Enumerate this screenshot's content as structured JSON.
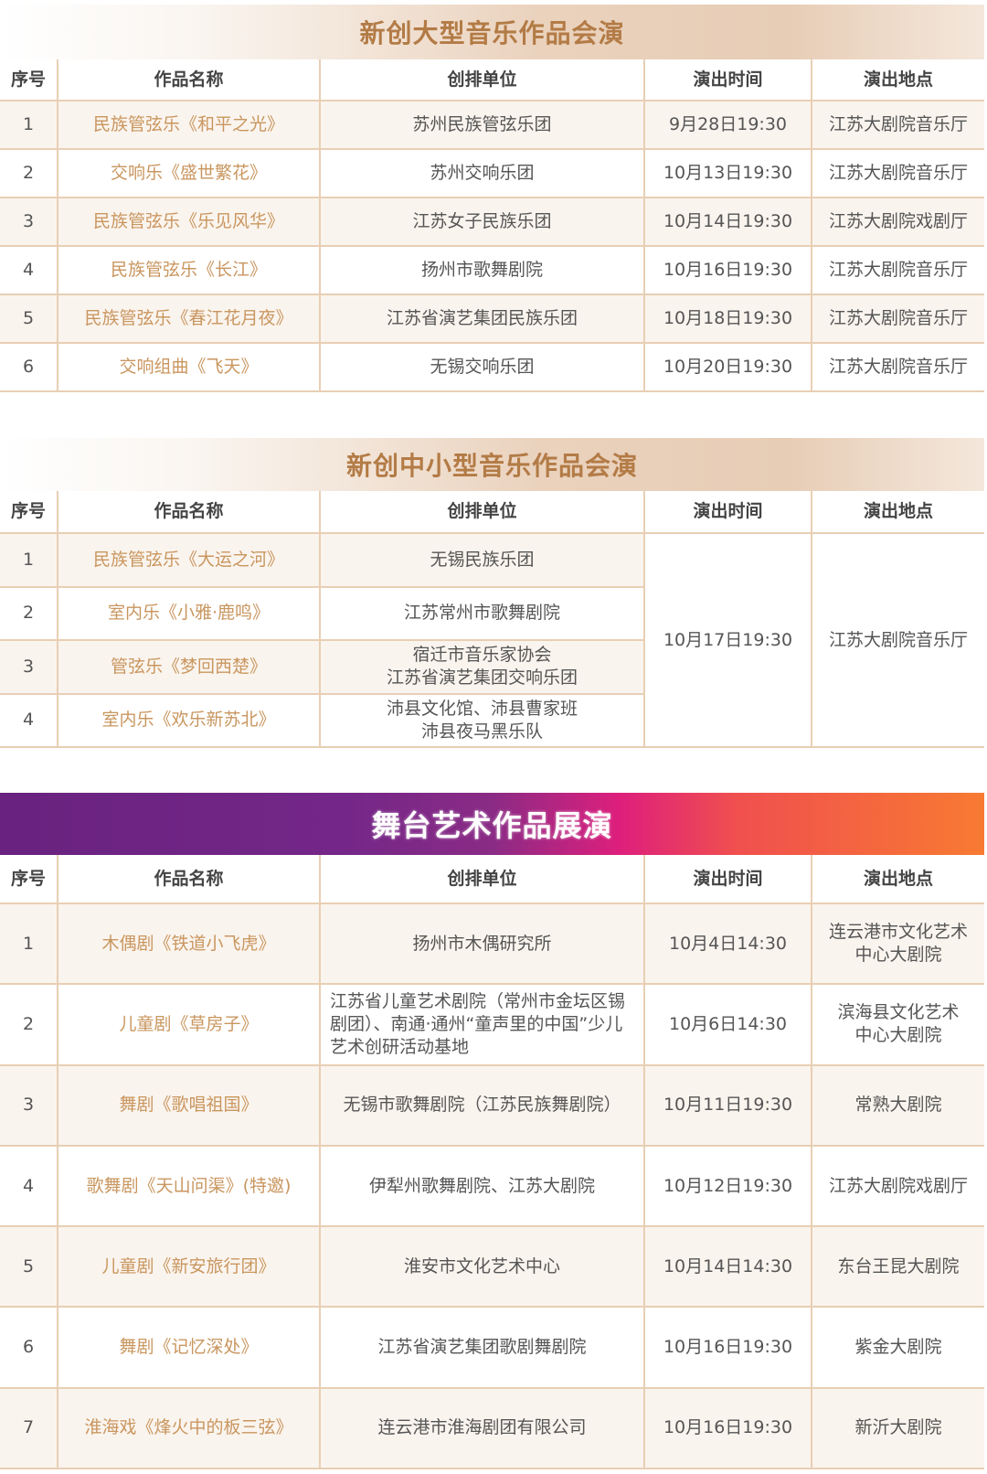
{
  "headers": [
    "序号",
    "作品名称",
    "创排单位",
    "演出时间",
    "演出地点"
  ],
  "section1": {
    "title": "新创大型音乐作品会演",
    "rows": [
      {
        "no": "1",
        "name": "民族管弦乐《和平之光》",
        "unit": "苏州民族管弦乐团",
        "time": "9月28日19:30",
        "venue": "江苏大剧院音乐厅"
      },
      {
        "no": "2",
        "name": "交响乐《盛世繁花》",
        "unit": "苏州交响乐团",
        "time": "10月13日19:30",
        "venue": "江苏大剧院音乐厅"
      },
      {
        "no": "3",
        "name": "民族管弦乐《乐见风华》",
        "unit": "江苏女子民族乐团",
        "time": "10月14日19:30",
        "venue": "江苏大剧院戏剧厅"
      },
      {
        "no": "4",
        "name": "民族管弦乐《长江》",
        "unit": "扬州市歌舞剧院",
        "time": "10月16日19:30",
        "venue": "江苏大剧院音乐厅"
      },
      {
        "no": "5",
        "name": "民族管弦乐《春江花月夜》",
        "unit": "江苏省演艺集团民族乐团",
        "time": "10月18日19:30",
        "venue": "江苏大剧院音乐厅"
      },
      {
        "no": "6",
        "name": "交响组曲《飞天》",
        "unit": "无锡交响乐团",
        "time": "10月20日19:30",
        "venue": "江苏大剧院音乐厅"
      }
    ]
  },
  "section2": {
    "title": "新创中小型音乐作品会演",
    "time": "10月17日19:30",
    "venue": "江苏大剧院音乐厅",
    "rows": [
      {
        "no": "1",
        "name": "民族管弦乐《大运之河》",
        "unit": "无锡民族乐团"
      },
      {
        "no": "2",
        "name": "室内乐《小雅·鹿鸣》",
        "unit": "江苏常州市歌舞剧院"
      },
      {
        "no": "3",
        "name": "管弦乐《梦回西楚》",
        "unit": "宿迁市音乐家协会\n江苏省演艺集团交响乐团"
      },
      {
        "no": "4",
        "name": "室内乐《欢乐新苏北》",
        "unit": "沛县文化馆、沛县曹家班\n沛县夜马黑乐队"
      }
    ]
  },
  "section3": {
    "title": "舞台艺术作品展演",
    "rows": [
      {
        "no": "1",
        "name": "木偶剧《铁道小飞虎》",
        "unit": "扬州市木偶研究所",
        "time": "10月4日14:30",
        "venue": "连云港市文化艺术\n中心大剧院"
      },
      {
        "no": "2",
        "name": "儿童剧《草房子》",
        "unit": "江苏省儿童艺术剧院（常州市金坛区锡剧团）、南通·通州“童声里的中国”少儿艺术创研活动基地",
        "time": "10月6日14:30",
        "venue": "滨海县文化艺术\n中心大剧院"
      },
      {
        "no": "3",
        "name": "舞剧《歌唱祖国》",
        "unit": "无锡市歌舞剧院（江苏民族舞剧院）",
        "time": "10月11日19:30",
        "venue": "常熟大剧院"
      },
      {
        "no": "4",
        "name": "歌舞剧《天山问渠》(特邀)",
        "unit": "伊犁州歌舞剧院、江苏大剧院",
        "time": "10月12日19:30",
        "venue": "江苏大剧院戏剧厅"
      },
      {
        "no": "5",
        "name": "儿童剧《新安旅行团》",
        "unit": "淮安市文化艺术中心",
        "time": "10月14日14:30",
        "venue": "东台王昆大剧院"
      },
      {
        "no": "6",
        "name": "舞剧《记忆深处》",
        "unit": "江苏省演艺集团歌剧舞剧院",
        "time": "10月16日19:30",
        "venue": "紫金大剧院"
      },
      {
        "no": "7",
        "name": "淮海戏《烽火中的板三弦》",
        "unit": "连云港市淮海剧团有限公司",
        "time": "10月16日19:30",
        "venue": "新沂大剧院"
      }
    ]
  }
}
